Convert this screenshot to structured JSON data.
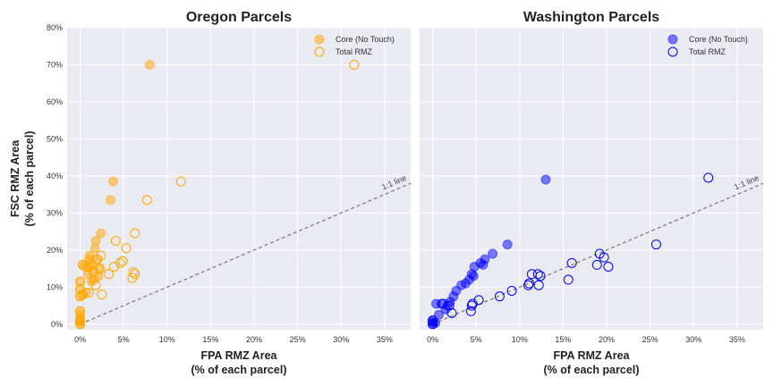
{
  "chart_data": [
    {
      "type": "scatter",
      "title": "Oregon Parcels",
      "xlabel": [
        "FPA RMZ Area",
        "(% of each parcel)"
      ],
      "ylabel": [
        "FSC RMZ Area",
        "(% of each parcel)"
      ],
      "xlim": [
        -1.5,
        38
      ],
      "ylim": [
        -1.5,
        80
      ],
      "xticks": [
        0,
        5,
        10,
        15,
        20,
        25,
        30,
        35
      ],
      "xtick_labels": [
        "0%",
        "5%",
        "10%",
        "15%",
        "20%",
        "25%",
        "30%",
        "35%"
      ],
      "yticks": [
        0,
        10,
        20,
        30,
        40,
        50,
        60,
        70,
        80
      ],
      "ytick_labels": [
        "0%",
        "10%",
        "20%",
        "30%",
        "40%",
        "50%",
        "60%",
        "70%",
        "80%"
      ],
      "grid": true,
      "legend_position": "top-right",
      "reference_line": {
        "label": "1:1 line",
        "slope": 1
      },
      "series": [
        {
          "name": "Core (No Touch)",
          "marker": "filled-circle",
          "color": "#FFA500",
          "points": [
            [
              0,
              0
            ],
            [
              0,
              0.5
            ],
            [
              0,
              1
            ],
            [
              0,
              1.5
            ],
            [
              0,
              2.5
            ],
            [
              0,
              3.5
            ],
            [
              0,
              7.5
            ],
            [
              0,
              9.5
            ],
            [
              0,
              11.5
            ],
            [
              0.3,
              8
            ],
            [
              0.3,
              16
            ],
            [
              0.5,
              15.5
            ],
            [
              0.7,
              8.5
            ],
            [
              0.9,
              13.5
            ],
            [
              1,
              15.5
            ],
            [
              1,
              17.5
            ],
            [
              1.1,
              18.5
            ],
            [
              1.3,
              11.5
            ],
            [
              1.3,
              16.5
            ],
            [
              1.5,
              14.5
            ],
            [
              1.6,
              12
            ],
            [
              1.7,
              20.5
            ],
            [
              1.8,
              22.5
            ],
            [
              1.9,
              17.5
            ],
            [
              2.1,
              13
            ],
            [
              2.3,
              15
            ],
            [
              2.4,
              24.5
            ],
            [
              3.5,
              33.5
            ],
            [
              3.8,
              38.5
            ],
            [
              8,
              70
            ]
          ]
        },
        {
          "name": "Total RMZ",
          "marker": "open-circle",
          "color": "#FFA500",
          "points": [
            [
              0,
              0
            ],
            [
              0,
              1
            ],
            [
              0,
              3.5
            ],
            [
              0,
              7.5
            ],
            [
              0,
              9.5
            ],
            [
              0,
              11.5
            ],
            [
              0.3,
              8
            ],
            [
              0.3,
              16
            ],
            [
              1,
              8.5
            ],
            [
              1,
              15.5
            ],
            [
              1.5,
              14
            ],
            [
              1.8,
              10.5
            ],
            [
              2,
              17.5
            ],
            [
              2.2,
              15
            ],
            [
              2.4,
              18.5
            ],
            [
              2.5,
              8
            ],
            [
              3.3,
              13.5
            ],
            [
              3.9,
              15.5
            ],
            [
              4.1,
              22.5
            ],
            [
              4.6,
              16.5
            ],
            [
              4.9,
              17
            ],
            [
              5.3,
              20.5
            ],
            [
              6,
              12.5
            ],
            [
              6.1,
              14
            ],
            [
              6.3,
              13.5
            ],
            [
              6.3,
              24.5
            ],
            [
              7.7,
              33.5
            ],
            [
              11.6,
              38.5
            ],
            [
              31.5,
              70
            ]
          ]
        }
      ]
    },
    {
      "type": "scatter",
      "title": "Washington Parcels",
      "xlabel": [
        "FPA RMZ Area",
        "(% of each parcel)"
      ],
      "xlim": [
        -1.5,
        38
      ],
      "ylim": [
        -1.5,
        80
      ],
      "xticks": [
        0,
        5,
        10,
        15,
        20,
        25,
        30,
        35
      ],
      "xtick_labels": [
        "0%",
        "5%",
        "10%",
        "15%",
        "20%",
        "25%",
        "30%",
        "35%"
      ],
      "yticks": [
        0,
        10,
        20,
        30,
        40,
        50,
        60,
        70,
        80
      ],
      "grid": true,
      "legend_position": "top-right",
      "reference_line": {
        "label": "1:1 line",
        "slope": 1
      },
      "series": [
        {
          "name": "Core (No Touch)",
          "marker": "filled-circle",
          "color": "#0000FF",
          "points": [
            [
              0,
              0
            ],
            [
              0,
              0.5
            ],
            [
              0,
              1
            ],
            [
              0.3,
              0.3
            ],
            [
              0.4,
              5.5
            ],
            [
              0.7,
              2.5
            ],
            [
              1,
              5.5
            ],
            [
              1.5,
              4
            ],
            [
              1.7,
              5
            ],
            [
              2,
              6
            ],
            [
              2.4,
              7.5
            ],
            [
              2.7,
              9
            ],
            [
              3.3,
              10.5
            ],
            [
              3.8,
              11
            ],
            [
              4.2,
              12
            ],
            [
              4.5,
              13.5
            ],
            [
              4.7,
              13
            ],
            [
              4.8,
              15.5
            ],
            [
              5.5,
              16.5
            ],
            [
              5.8,
              16
            ],
            [
              6,
              17.5
            ],
            [
              6.9,
              19
            ],
            [
              8.6,
              21.5
            ],
            [
              13,
              39
            ]
          ]
        },
        {
          "name": "Total RMZ",
          "marker": "open-circle",
          "color": "#0000FF",
          "points": [
            [
              0,
              0
            ],
            [
              0,
              1
            ],
            [
              1.2,
              5.5
            ],
            [
              1.9,
              5
            ],
            [
              2.2,
              3
            ],
            [
              4.4,
              3.5
            ],
            [
              4.5,
              5
            ],
            [
              4.6,
              5.5
            ],
            [
              5.3,
              6.5
            ],
            [
              7.7,
              7.5
            ],
            [
              9.1,
              9
            ],
            [
              11,
              10.5
            ],
            [
              11.1,
              11
            ],
            [
              11.4,
              13.5
            ],
            [
              12.1,
              13.5
            ],
            [
              12.2,
              10.5
            ],
            [
              12.4,
              13
            ],
            [
              15.6,
              12
            ],
            [
              16,
              16.5
            ],
            [
              18.9,
              16
            ],
            [
              19.2,
              19
            ],
            [
              19.7,
              18
            ],
            [
              20.2,
              15.5
            ],
            [
              25.7,
              21.5
            ],
            [
              31.7,
              39.5
            ]
          ]
        }
      ]
    }
  ]
}
